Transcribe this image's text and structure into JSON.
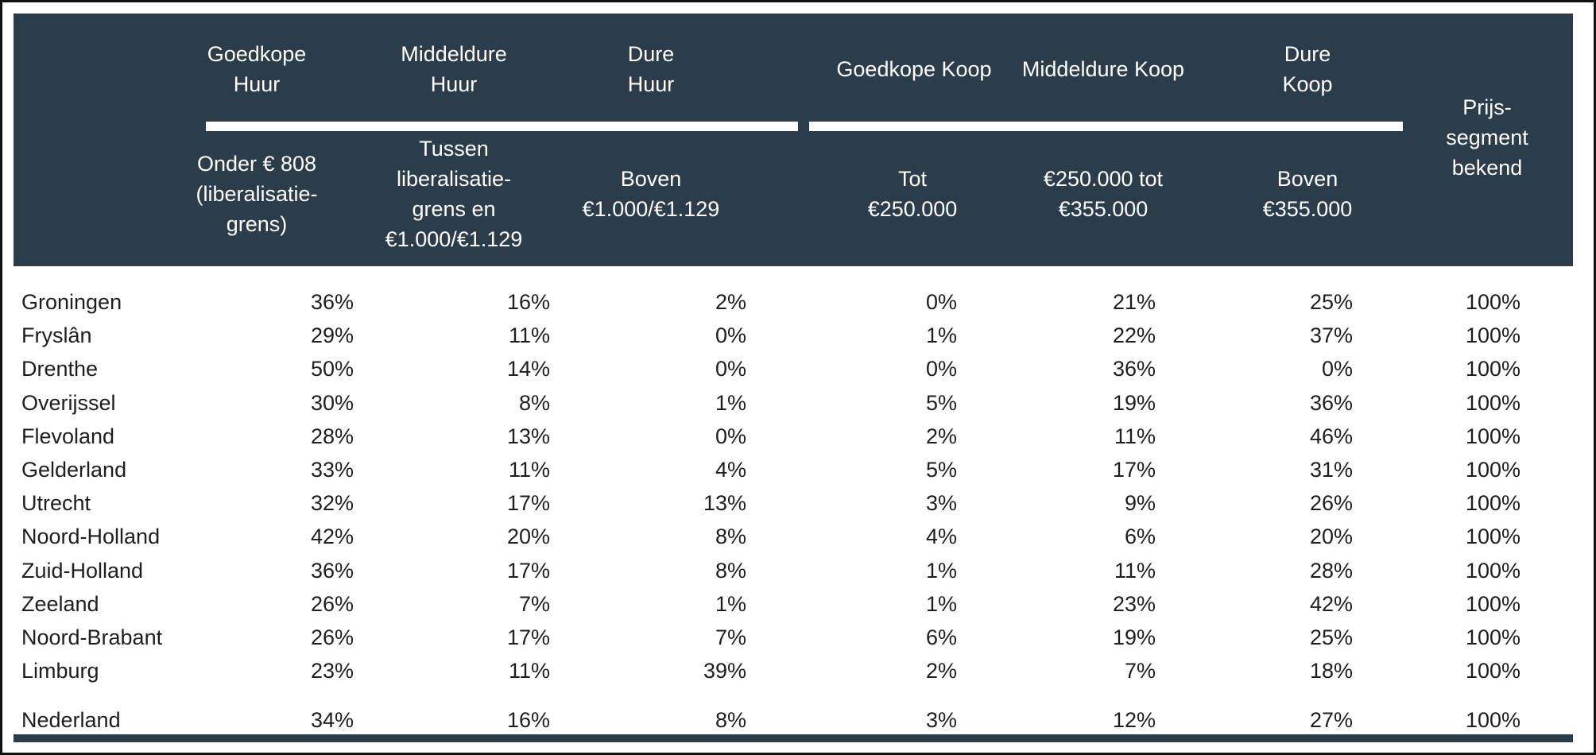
{
  "header": {
    "groups": [
      {
        "label": "Goedkope\nHuur"
      },
      {
        "label": "Middeldure\nHuur"
      },
      {
        "label": "Dure\nHuur"
      },
      {
        "label": "Goedkope Koop"
      },
      {
        "label": "Middeldure Koop"
      },
      {
        "label": "Dure\nKoop"
      }
    ],
    "subs": [
      {
        "label": "Onder € 808\n(liberalisatie-\ngrens)"
      },
      {
        "label": "Tussen\nliberalisatie-\ngrens en\n€1.000/€1.129"
      },
      {
        "label": "Boven\n€1.000/€1.129"
      },
      {
        "label": "Tot\n€250.000"
      },
      {
        "label": "€250.000 tot\n€355.000"
      },
      {
        "label": "Boven\n€355.000"
      }
    ],
    "last": "Prijs-\nsegment\nbekend"
  },
  "rows": [
    {
      "name": "Groningen",
      "v": [
        "36%",
        "16%",
        "2%",
        "0%",
        "21%",
        "25%",
        "100%"
      ]
    },
    {
      "name": "Fryslân",
      "v": [
        "29%",
        "11%",
        "0%",
        "1%",
        "22%",
        "37%",
        "100%"
      ]
    },
    {
      "name": "Drenthe",
      "v": [
        "50%",
        "14%",
        "0%",
        "0%",
        "36%",
        "0%",
        "100%"
      ]
    },
    {
      "name": "Overijssel",
      "v": [
        "30%",
        "8%",
        "1%",
        "5%",
        "19%",
        "36%",
        "100%"
      ]
    },
    {
      "name": "Flevoland",
      "v": [
        "28%",
        "13%",
        "0%",
        "2%",
        "11%",
        "46%",
        "100%"
      ]
    },
    {
      "name": "Gelderland",
      "v": [
        "33%",
        "11%",
        "4%",
        "5%",
        "17%",
        "31%",
        "100%"
      ]
    },
    {
      "name": "Utrecht",
      "v": [
        "32%",
        "17%",
        "13%",
        "3%",
        "9%",
        "26%",
        "100%"
      ]
    },
    {
      "name": "Noord-Holland",
      "v": [
        "42%",
        "20%",
        "8%",
        "4%",
        "6%",
        "20%",
        "100%"
      ]
    },
    {
      "name": "Zuid-Holland",
      "v": [
        "36%",
        "17%",
        "8%",
        "1%",
        "11%",
        "28%",
        "100%"
      ]
    },
    {
      "name": "Zeeland",
      "v": [
        "26%",
        "7%",
        "1%",
        "1%",
        "23%",
        "42%",
        "100%"
      ]
    },
    {
      "name": "Noord-Brabant",
      "v": [
        "26%",
        "17%",
        "7%",
        "6%",
        "19%",
        "25%",
        "100%"
      ]
    },
    {
      "name": "Limburg",
      "v": [
        "23%",
        "11%",
        "39%",
        "2%",
        "7%",
        "18%",
        "100%"
      ]
    }
  ],
  "total": {
    "name": "Nederland",
    "v": [
      "34%",
      "16%",
      "8%",
      "3%",
      "12%",
      "27%",
      "100%"
    ]
  },
  "colors": {
    "header_bg": "#2b3d4a",
    "text": "#1e1e1e",
    "frame": "#111111"
  }
}
